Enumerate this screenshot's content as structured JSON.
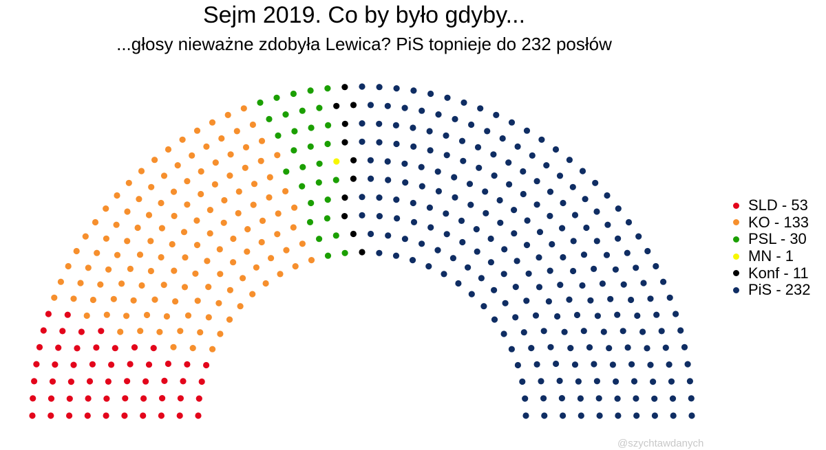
{
  "chart_data": {
    "type": "parliament",
    "title": "Sejm 2019. Co by było gdyby...",
    "subtitle": "...głosy nieważne zdobyła Lewica? PiS topnieje do 232 posłów",
    "total_seats": 460,
    "rows": 10,
    "legend_position": "right",
    "grid": false,
    "series": [
      {
        "name": "SLD",
        "label": "SLD - 53",
        "value": 53,
        "color": "#e3051b"
      },
      {
        "name": "KO",
        "label": "KO - 133",
        "value": 133,
        "color": "#f68f2d"
      },
      {
        "name": "PSL",
        "label": "PSL - 30",
        "value": 30,
        "color": "#1b9f01"
      },
      {
        "name": "MN",
        "label": "MN - 1",
        "value": 1,
        "color": "#f7f700"
      },
      {
        "name": "Konf",
        "label": "Konf - 11",
        "value": 11,
        "color": "#000000"
      },
      {
        "name": "PiS",
        "label": "PiS - 232",
        "value": 232,
        "color": "#0f2d63"
      }
    ]
  },
  "credit": "@szychtawdanych"
}
